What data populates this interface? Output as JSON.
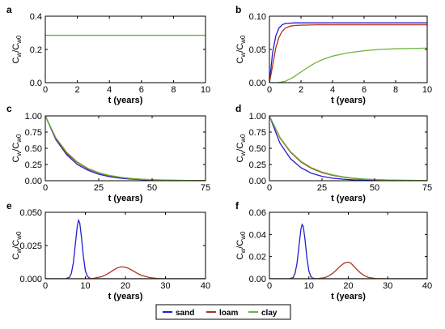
{
  "figure": {
    "legend": [
      {
        "name": "sand",
        "color": "#1f1fd0"
      },
      {
        "name": "loam",
        "color": "#b0301e"
      },
      {
        "name": "clay",
        "color": "#6db33f"
      }
    ]
  },
  "chart_data": [
    {
      "panel": "a",
      "type": "line",
      "xlabel": "t (years)",
      "ylabel_main": "C",
      "ylabel_sub1": "w",
      "ylabel_mid": "/C",
      "ylabel_sub2": "w0",
      "xlim": [
        0,
        10
      ],
      "ylim": [
        0,
        0.4
      ],
      "xticks": [
        0,
        2,
        4,
        6,
        8,
        10
      ],
      "yticks": [
        0,
        0.2,
        0.4
      ],
      "ytick_labels": [
        "0.0",
        "0.2",
        "0.4"
      ],
      "series": [
        {
          "name": "clay",
          "x": [
            0,
            10
          ],
          "y": [
            0.285,
            0.285
          ]
        }
      ]
    },
    {
      "panel": "b",
      "type": "line",
      "xlabel": "t (years)",
      "ylabel_main": "C",
      "ylabel_sub1": "w",
      "ylabel_mid": "/C",
      "ylabel_sub2": "w0",
      "xlim": [
        0,
        10
      ],
      "ylim": [
        0,
        0.1
      ],
      "xticks": [
        0,
        2,
        4,
        6,
        8,
        10
      ],
      "yticks": [
        0,
        0.05,
        0.1
      ],
      "ytick_labels": [
        "0.00",
        "0.05",
        "0.10"
      ],
      "series": [
        {
          "name": "sand",
          "x": [
            0,
            0.2,
            0.4,
            0.6,
            0.8,
            1.0,
            1.3,
            1.6,
            2,
            3,
            4,
            6,
            8,
            10
          ],
          "y": [
            0,
            0.045,
            0.07,
            0.082,
            0.087,
            0.089,
            0.0895,
            0.09,
            0.09,
            0.09,
            0.09,
            0.09,
            0.09,
            0.09
          ]
        },
        {
          "name": "loam",
          "x": [
            0,
            0.2,
            0.4,
            0.6,
            0.8,
            1.0,
            1.3,
            1.6,
            2,
            3,
            4,
            6,
            8,
            10
          ],
          "y": [
            0,
            0.025,
            0.052,
            0.068,
            0.077,
            0.082,
            0.085,
            0.086,
            0.0865,
            0.087,
            0.087,
            0.087,
            0.087,
            0.087
          ]
        },
        {
          "name": "clay",
          "x": [
            0,
            0.5,
            1,
            1.5,
            2,
            2.5,
            3,
            3.5,
            4,
            5,
            6,
            7,
            8,
            9,
            10
          ],
          "y": [
            0,
            0.0,
            0.002,
            0.008,
            0.016,
            0.024,
            0.031,
            0.036,
            0.04,
            0.045,
            0.048,
            0.05,
            0.051,
            0.0515,
            0.052
          ]
        }
      ]
    },
    {
      "panel": "c",
      "type": "line",
      "xlabel": "t (years)",
      "ylabel_main": "C",
      "ylabel_sub1": "w",
      "ylabel_mid": "/C",
      "ylabel_sub2": "w0",
      "xlim": [
        0,
        75
      ],
      "ylim": [
        0,
        1
      ],
      "xticks": [
        0,
        25,
        50,
        75
      ],
      "yticks": [
        0,
        0.25,
        0.5,
        0.75,
        1
      ],
      "ytick_labels": [
        "0.00",
        "0.25",
        "0.50",
        "0.75",
        "1.00"
      ],
      "series": [
        {
          "name": "sand",
          "x": [
            0,
            5,
            10,
            15,
            20,
            25,
            30,
            35,
            40,
            45,
            50,
            60,
            75
          ],
          "y": [
            1,
            0.63,
            0.4,
            0.25,
            0.16,
            0.1,
            0.063,
            0.04,
            0.025,
            0.016,
            0.01,
            0.004,
            0.001
          ]
        },
        {
          "name": "loam",
          "x": [
            0,
            5,
            10,
            15,
            20,
            25,
            30,
            35,
            40,
            45,
            50,
            60,
            75
          ],
          "y": [
            1,
            0.65,
            0.42,
            0.28,
            0.18,
            0.12,
            0.078,
            0.05,
            0.033,
            0.021,
            0.014,
            0.006,
            0.002
          ]
        },
        {
          "name": "clay",
          "x": [
            0,
            5,
            10,
            15,
            20,
            25,
            30,
            35,
            40,
            45,
            50,
            60,
            75
          ],
          "y": [
            1,
            0.66,
            0.44,
            0.29,
            0.19,
            0.125,
            0.083,
            0.055,
            0.036,
            0.024,
            0.016,
            0.007,
            0.002
          ]
        }
      ]
    },
    {
      "panel": "d",
      "type": "line",
      "xlabel": "t (years)",
      "ylabel_main": "C",
      "ylabel_sub1": "w",
      "ylabel_mid": "/C",
      "ylabel_sub2": "w0",
      "xlim": [
        0,
        75
      ],
      "ylim": [
        0,
        1
      ],
      "xticks": [
        0,
        25,
        50,
        75
      ],
      "yticks": [
        0,
        0.25,
        0.5,
        0.75,
        1
      ],
      "ytick_labels": [
        "0.00",
        "0.25",
        "0.50",
        "0.75",
        "1.00"
      ],
      "series": [
        {
          "name": "sand",
          "x": [
            0,
            5,
            10,
            15,
            20,
            25,
            30,
            35,
            40,
            45,
            50,
            60,
            75
          ],
          "y": [
            1,
            0.58,
            0.34,
            0.2,
            0.115,
            0.067,
            0.039,
            0.023,
            0.013,
            0.008,
            0.005,
            0.002,
            0.0
          ]
        },
        {
          "name": "loam",
          "x": [
            0,
            5,
            10,
            15,
            20,
            25,
            30,
            35,
            40,
            45,
            50,
            60,
            75
          ],
          "y": [
            1,
            0.66,
            0.44,
            0.29,
            0.19,
            0.125,
            0.083,
            0.055,
            0.036,
            0.024,
            0.016,
            0.007,
            0.002
          ]
        },
        {
          "name": "clay",
          "x": [
            0,
            5,
            10,
            15,
            20,
            25,
            30,
            35,
            40,
            45,
            50,
            60,
            75
          ],
          "y": [
            1,
            0.67,
            0.45,
            0.3,
            0.2,
            0.135,
            0.09,
            0.06,
            0.04,
            0.027,
            0.018,
            0.008,
            0.003
          ]
        }
      ]
    },
    {
      "panel": "e",
      "type": "line",
      "xlabel": "t (years)",
      "ylabel_main": "C",
      "ylabel_sub1": "w",
      "ylabel_mid": "/C",
      "ylabel_sub2": "w0",
      "xlim": [
        0,
        40
      ],
      "ylim": [
        0,
        0.05
      ],
      "xticks": [
        0,
        10,
        20,
        30,
        40
      ],
      "yticks": [
        0,
        0.025,
        0.05
      ],
      "ytick_labels": [
        "0.000",
        "0.025",
        "0.050"
      ],
      "series": [
        {
          "name": "sand",
          "x": [
            0,
            5,
            6,
            6.5,
            7,
            7.5,
            8,
            8.3,
            8.6,
            9,
            9.5,
            10,
            10.5,
            11,
            12,
            40
          ],
          "y": [
            0,
            0,
            0.001,
            0.004,
            0.012,
            0.026,
            0.04,
            0.044,
            0.042,
            0.032,
            0.017,
            0.006,
            0.002,
            0.0005,
            0,
            0
          ]
        },
        {
          "name": "loam",
          "x": [
            0,
            10,
            12,
            14,
            15,
            16,
            17,
            18,
            19,
            20,
            21,
            22,
            23,
            24,
            26,
            28,
            30,
            40
          ],
          "y": [
            0,
            0,
            0.0003,
            0.0015,
            0.0028,
            0.0045,
            0.0065,
            0.0082,
            0.009,
            0.0087,
            0.0075,
            0.0058,
            0.004,
            0.0026,
            0.0009,
            0.0002,
            0,
            0
          ]
        },
        {
          "name": "clay",
          "x": [
            0,
            40
          ],
          "y": [
            0,
            0
          ]
        }
      ]
    },
    {
      "panel": "f",
      "type": "line",
      "xlabel": "t (years)",
      "ylabel_main": "C",
      "ylabel_sub1": "w",
      "ylabel_mid": "/C",
      "ylabel_sub2": "w0",
      "xlim": [
        0,
        40
      ],
      "ylim": [
        0,
        0.06
      ],
      "xticks": [
        0,
        10,
        20,
        30,
        40
      ],
      "yticks": [
        0,
        0.02,
        0.04,
        0.06
      ],
      "ytick_labels": [
        "0.00",
        "0.02",
        "0.04",
        "0.06"
      ],
      "series": [
        {
          "name": "sand",
          "x": [
            0,
            5,
            6,
            6.5,
            7,
            7.5,
            8,
            8.3,
            8.6,
            9,
            9.5,
            10,
            10.5,
            11,
            12,
            40
          ],
          "y": [
            0,
            0,
            0.001,
            0.005,
            0.014,
            0.03,
            0.045,
            0.049,
            0.047,
            0.036,
            0.019,
            0.007,
            0.002,
            0.0005,
            0,
            0
          ]
        },
        {
          "name": "loam",
          "x": [
            0,
            12,
            14,
            15,
            16,
            17,
            18,
            19,
            19.8,
            20.5,
            21,
            22,
            23,
            24,
            25,
            27,
            30,
            40
          ],
          "y": [
            0,
            0,
            0.001,
            0.0025,
            0.0048,
            0.008,
            0.0115,
            0.0142,
            0.015,
            0.0145,
            0.0128,
            0.009,
            0.0055,
            0.003,
            0.0013,
            0.0002,
            0,
            0
          ]
        },
        {
          "name": "clay",
          "x": [
            0,
            40
          ],
          "y": [
            0,
            0
          ]
        }
      ]
    }
  ]
}
